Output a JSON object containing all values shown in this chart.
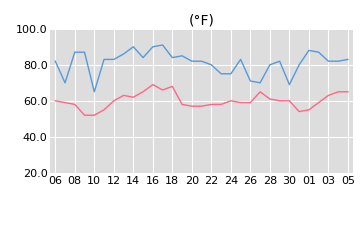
{
  "title": "(°F)",
  "x_labels": [
    "06",
    "08",
    "10",
    "12",
    "14",
    "16",
    "18",
    "20",
    "22",
    "24",
    "26",
    "28",
    "30",
    "01",
    "03",
    "05"
  ],
  "hi_temps": [
    82,
    70,
    87,
    87,
    65,
    83,
    83,
    86,
    90,
    84,
    90,
    91,
    84,
    85,
    82,
    82,
    80,
    75,
    75,
    83,
    71,
    70,
    80,
    82,
    69,
    80,
    88,
    87,
    82,
    82,
    83
  ],
  "lo_temps": [
    60,
    59,
    58,
    52,
    52,
    55,
    60,
    63,
    62,
    65,
    69,
    66,
    68,
    58,
    57,
    57,
    58,
    58,
    60,
    59,
    59,
    65,
    61,
    60,
    60,
    54,
    55,
    59,
    63,
    65,
    65
  ],
  "hi_color": "#5599dd",
  "lo_color": "#ff6688",
  "bg_color": "#dddddd",
  "ylim": [
    20.0,
    100.0
  ],
  "yticks": [
    20.0,
    40.0,
    60.0,
    80.0,
    100.0
  ],
  "grid_color": "#ffffff",
  "title_fontsize": 10,
  "tick_fontsize": 8
}
